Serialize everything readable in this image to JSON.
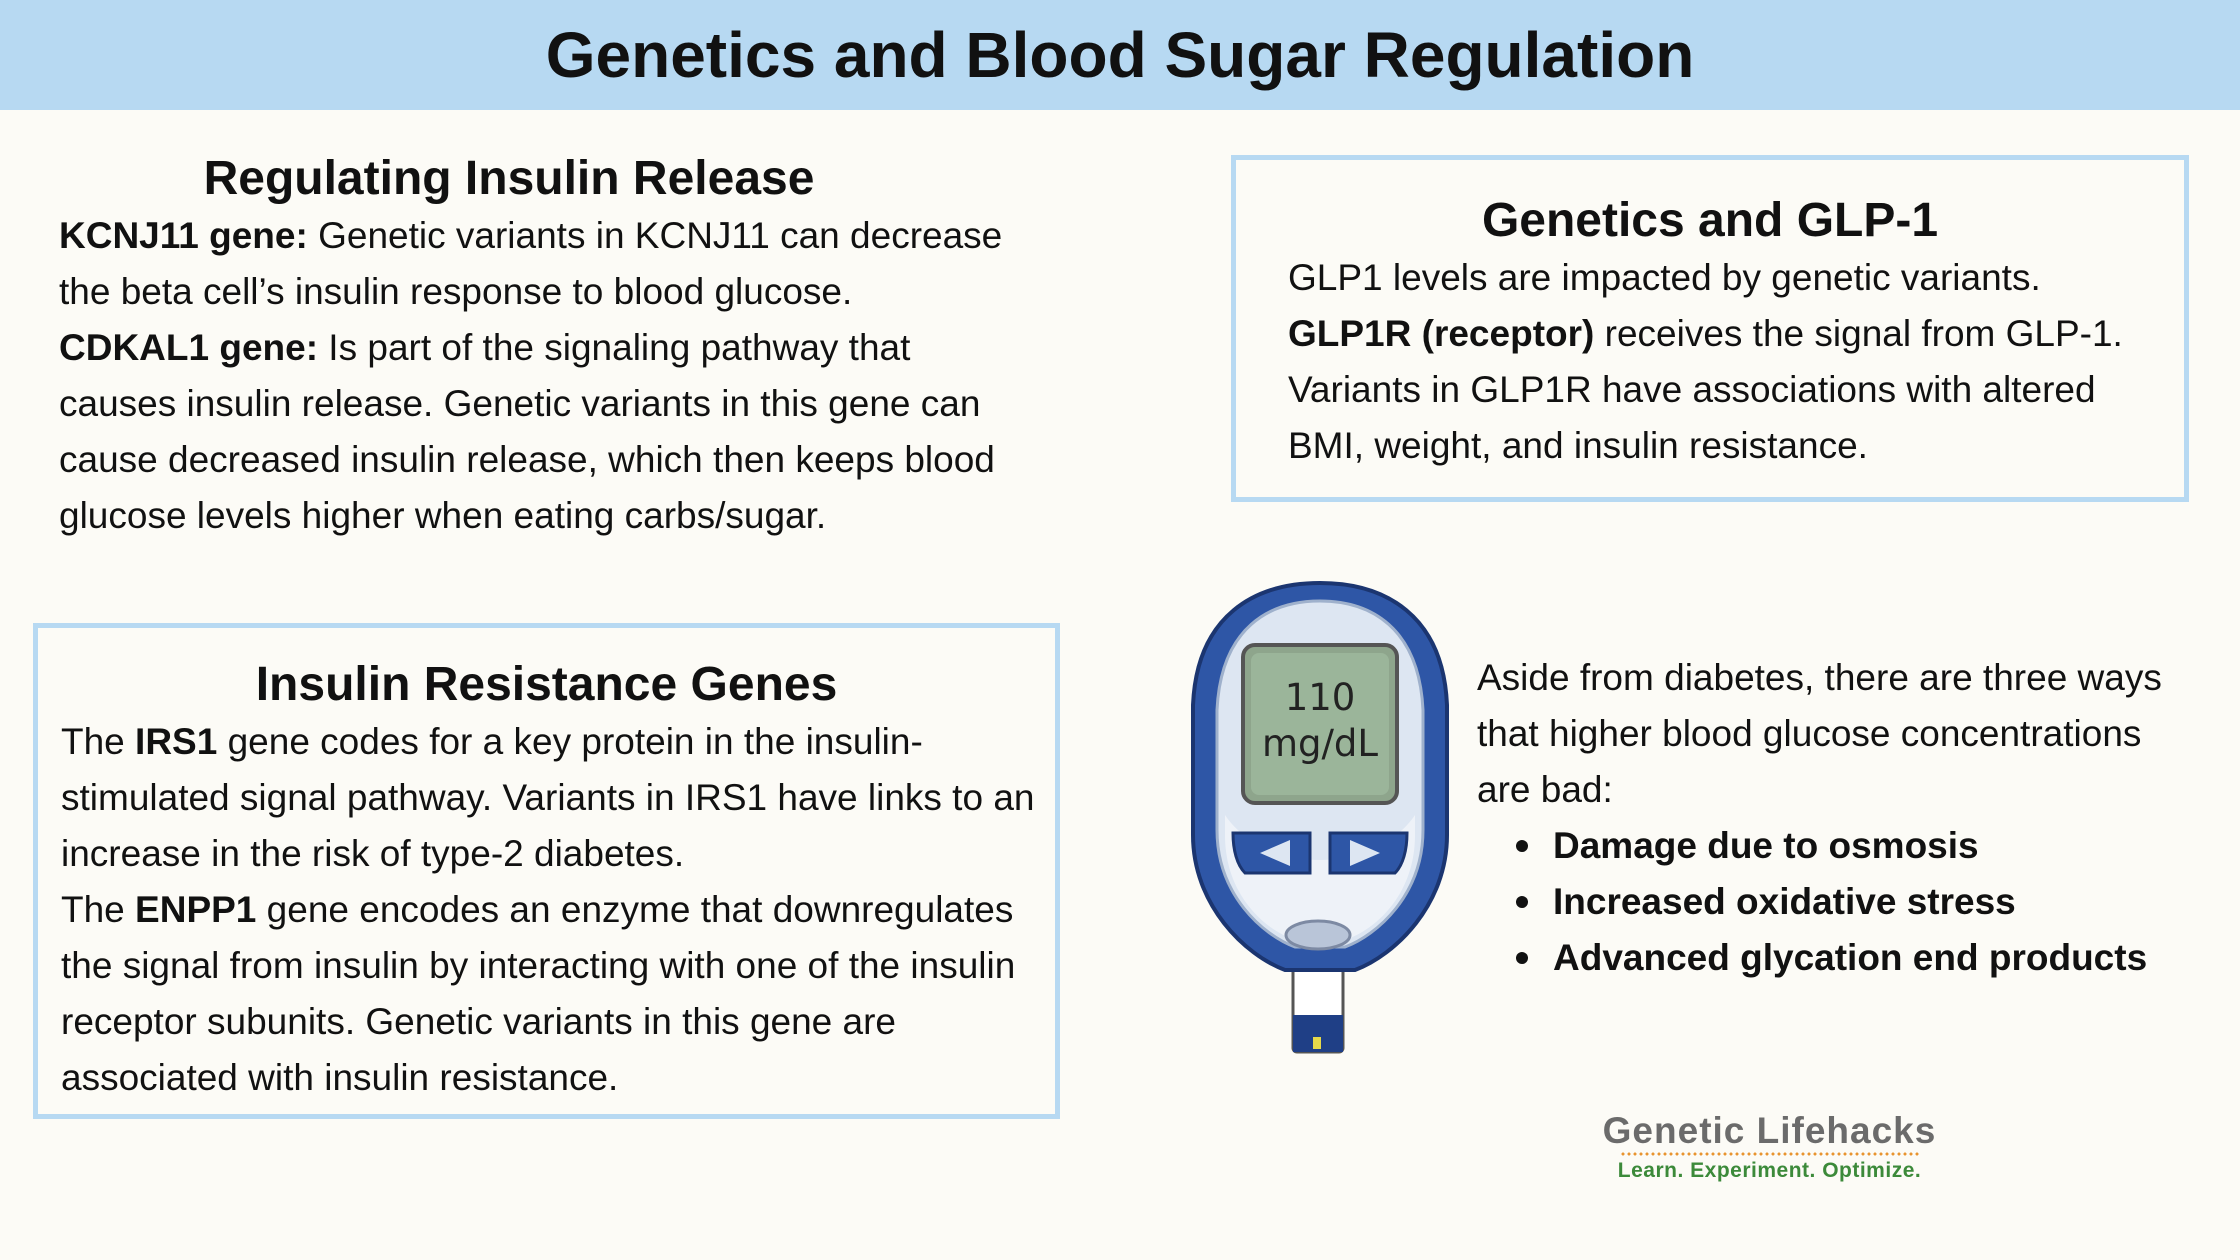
{
  "title": "Genetics and Blood Sugar Regulation",
  "colors": {
    "header_bg": "#b7d9f2",
    "box_border": "#b7d9f2",
    "page_bg": "#fcfbf6",
    "meter_blue": "#2e56a6",
    "meter_screen": "#9bb59a",
    "logo_gray": "#6b6b6b",
    "logo_green": "#3c8a3a",
    "logo_orange": "#e8942f"
  },
  "insulin_release": {
    "heading": "Regulating Insulin Release",
    "kcnj11_label": "KCNJ11 gene:",
    "kcnj11_text": " Genetic variants in KCNJ11 can decrease the beta cell’s insulin response to blood glucose.",
    "cdkal1_label": "CDKAL1 gene:",
    "cdkal1_text": " Is part of the signaling pathway that causes insulin release. Genetic variants in this gene can cause decreased insulin release, which then keeps blood glucose levels higher when eating carbs/sugar."
  },
  "insulin_resistance": {
    "heading": "Insulin Resistance Genes",
    "irs1_prefix": "The ",
    "irs1_label": "IRS1",
    "irs1_text": " gene codes for a key protein in the insulin-stimulated signal pathway. Variants in IRS1 have links to an increase in the risk of type-2 diabetes.",
    "enpp1_prefix": "The ",
    "enpp1_label": "ENPP1",
    "enpp1_text": " gene encodes an enzyme that downregulates the signal from insulin by interacting with one of the insulin receptor subunits. Genetic variants in this gene are associated with insulin resistance."
  },
  "glp1": {
    "heading": "Genetics and GLP-1",
    "line1": "GLP1 levels are impacted by genetic variants.",
    "glp1r_label": "GLP1R (receptor)",
    "glp1r_text": " receives the signal from GLP-1. Variants in GLP1R have associations with altered BMI, weight, and insulin resistance."
  },
  "meter": {
    "icon": "glucose-meter-icon",
    "reading_value": "110",
    "reading_unit": "mg/dL"
  },
  "aside": {
    "intro": "Aside from diabetes, there are three ways that higher blood glucose concentrations are bad:",
    "bullets": [
      "Damage due to osmosis",
      "Increased oxidative stress",
      "Advanced glycation end products"
    ]
  },
  "logo": {
    "brand": "Genetic Lifehacks",
    "tagline": "Learn. Experiment. Optimize."
  }
}
